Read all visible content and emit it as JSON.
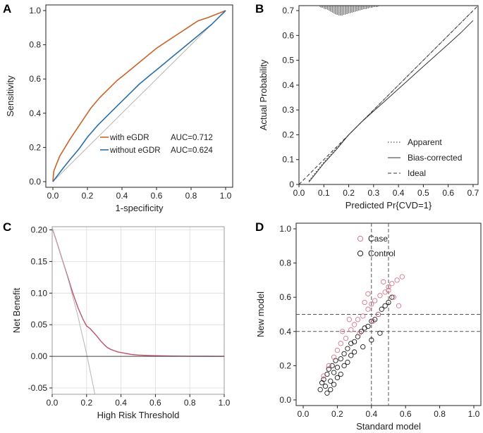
{
  "colors": {
    "with_egdr": "#c8642a",
    "without_egdr": "#2c6ea6",
    "dca_model": "#c0506a",
    "case_marker": "#d8758a",
    "control_marker": "#1a1a1a",
    "reference": "#b4b4b4",
    "axis": "#222222",
    "grid": "#dcdcdc"
  },
  "chart_data": [
    {
      "panel": "A",
      "type": "line",
      "xlabel": "1-specificity",
      "ylabel": "Sensitivity",
      "xlim": [
        0,
        1
      ],
      "ylim": [
        0,
        1
      ],
      "xticks": [
        "0.0",
        "0.2",
        "0.4",
        "0.6",
        "0.8",
        "1.0"
      ],
      "yticks": [
        "0.0",
        "0.2",
        "0.4",
        "0.6",
        "0.8",
        "1.0"
      ],
      "legend_position": "bottom-right",
      "series": [
        {
          "name": "with eGDR",
          "auc_label": "AUC=0.712",
          "x": [
            0,
            0.005,
            0.02,
            0.04,
            0.07,
            0.1,
            0.14,
            0.18,
            0.22,
            0.27,
            0.32,
            0.37,
            0.42,
            0.48,
            0.54,
            0.6,
            0.66,
            0.72,
            0.78,
            0.84,
            0.9,
            0.95,
            1.0
          ],
          "y": [
            0,
            0.06,
            0.1,
            0.15,
            0.2,
            0.25,
            0.31,
            0.37,
            0.43,
            0.49,
            0.54,
            0.59,
            0.63,
            0.68,
            0.73,
            0.78,
            0.82,
            0.86,
            0.9,
            0.94,
            0.96,
            0.98,
            1.0
          ]
        },
        {
          "name": "without eGDR",
          "auc_label": "AUC=0.624",
          "x": [
            0,
            0.03,
            0.06,
            0.1,
            0.15,
            0.2,
            0.26,
            0.32,
            0.38,
            0.44,
            0.5,
            0.56,
            0.62,
            0.68,
            0.74,
            0.8,
            0.86,
            0.92,
            0.97,
            1.0
          ],
          "y": [
            0,
            0.04,
            0.08,
            0.13,
            0.19,
            0.26,
            0.33,
            0.39,
            0.45,
            0.51,
            0.57,
            0.62,
            0.67,
            0.72,
            0.77,
            0.82,
            0.87,
            0.92,
            0.97,
            1.0
          ]
        }
      ]
    },
    {
      "panel": "B",
      "type": "line",
      "xlabel": "Predicted Pr{CVD=1}",
      "ylabel": "Actual Probability",
      "xlim": [
        0,
        0.72
      ],
      "ylim": [
        0,
        0.72
      ],
      "xticks": [
        "0.0",
        "0.1",
        "0.2",
        "0.3",
        "0.4",
        "0.5",
        "0.6",
        "0.7"
      ],
      "yticks": [
        "0",
        "0.1",
        "0.2",
        "0.3",
        "0.4",
        "0.5",
        "0.6",
        "0.7"
      ],
      "legend_position": "bottom-right",
      "series": [
        {
          "name": "Apparent",
          "style": "dotted",
          "x": [
            0.04,
            0.06,
            0.1,
            0.15,
            0.2,
            0.25,
            0.3,
            0.35,
            0.4,
            0.45,
            0.5,
            0.55,
            0.6,
            0.65,
            0.7
          ],
          "y": [
            0.015,
            0.04,
            0.09,
            0.145,
            0.2,
            0.25,
            0.3,
            0.35,
            0.4,
            0.45,
            0.5,
            0.55,
            0.6,
            0.65,
            0.7
          ]
        },
        {
          "name": "Bias-corrected",
          "style": "solid",
          "x": [
            0.04,
            0.06,
            0.1,
            0.15,
            0.2,
            0.25,
            0.3,
            0.35,
            0.4,
            0.45,
            0.5,
            0.55,
            0.6,
            0.65,
            0.7
          ],
          "y": [
            0.01,
            0.035,
            0.085,
            0.14,
            0.2,
            0.25,
            0.295,
            0.34,
            0.385,
            0.43,
            0.475,
            0.52,
            0.565,
            0.61,
            0.66
          ]
        },
        {
          "name": "Ideal",
          "style": "dashed",
          "x": [
            0,
            0.72
          ],
          "y": [
            0,
            0.72
          ]
        }
      ],
      "rug_x": [
        0.085,
        0.09,
        0.095,
        0.1,
        0.105,
        0.11,
        0.115,
        0.12,
        0.125,
        0.13,
        0.135,
        0.14,
        0.145,
        0.15,
        0.155,
        0.16,
        0.165,
        0.17,
        0.175,
        0.18,
        0.185,
        0.19,
        0.195,
        0.2,
        0.205,
        0.21,
        0.215,
        0.22,
        0.225,
        0.23,
        0.235,
        0.24,
        0.245,
        0.25,
        0.255,
        0.26,
        0.265,
        0.27,
        0.275,
        0.28,
        0.285,
        0.29,
        0.295,
        0.3,
        0.305,
        0.31,
        0.315,
        0.32
      ],
      "rug_h": [
        2,
        3,
        3,
        4,
        5,
        5,
        6,
        7,
        8,
        9,
        10,
        11,
        12,
        13,
        13,
        14,
        14,
        14,
        14,
        13,
        13,
        12,
        12,
        11,
        11,
        10,
        10,
        9,
        9,
        8,
        8,
        7,
        7,
        6,
        6,
        5,
        5,
        5,
        4,
        4,
        3,
        3,
        3,
        2,
        2,
        2,
        2,
        1
      ]
    },
    {
      "panel": "C",
      "type": "line",
      "xlabel": "High Risk Threshold",
      "ylabel": "Net Benefit",
      "xlim": [
        0,
        1
      ],
      "ylim": [
        -0.06,
        0.205
      ],
      "xticks": [
        "0.0",
        "0.2",
        "0.4",
        "0.6",
        "0.8",
        "1.0"
      ],
      "yticks": [
        "-0.05",
        "0.00",
        "0.05",
        "0.10",
        "0.15",
        "0.20"
      ],
      "series": [
        {
          "role": "model",
          "x": [
            0,
            0.03,
            0.06,
            0.09,
            0.12,
            0.15,
            0.18,
            0.2,
            0.22,
            0.24,
            0.26,
            0.28,
            0.3,
            0.32,
            0.34,
            0.36,
            0.38,
            0.4,
            0.42,
            0.44,
            0.46,
            0.5,
            0.55,
            0.6,
            0.7,
            0.8,
            0.9,
            1.0
          ],
          "y": [
            0.203,
            0.178,
            0.152,
            0.126,
            0.1,
            0.077,
            0.058,
            0.048,
            0.044,
            0.038,
            0.032,
            0.025,
            0.019,
            0.014,
            0.011,
            0.009,
            0.007,
            0.006,
            0.005,
            0.004,
            0.003,
            0.002,
            0.0015,
            0.001,
            0.0005,
            0.0002,
            0.0001,
            0
          ]
        },
        {
          "role": "treat-all",
          "x": [
            0,
            0.05,
            0.1,
            0.15,
            0.2,
            0.25
          ],
          "y": [
            0.203,
            0.161,
            0.115,
            0.063,
            0.004,
            -0.062
          ]
        },
        {
          "role": "treat-none",
          "x": [
            0,
            1
          ],
          "y": [
            0,
            0
          ]
        }
      ]
    },
    {
      "panel": "D",
      "type": "scatter",
      "xlabel": "Standard model",
      "ylabel": "New model",
      "xlim": [
        0,
        1
      ],
      "ylim": [
        0,
        1
      ],
      "xticks": [
        "0.0",
        "0.2",
        "0.4",
        "0.6",
        "0.8",
        "1.0"
      ],
      "yticks": [
        "0.0",
        "0.2",
        "0.4",
        "0.6",
        "0.8",
        "1.0"
      ],
      "reference_x": [
        0.4,
        0.5
      ],
      "reference_y": [
        0.4,
        0.5
      ],
      "legend_position": "top-right",
      "series": [
        {
          "name": "Case",
          "x": [
            0.12,
            0.15,
            0.18,
            0.2,
            0.22,
            0.25,
            0.28,
            0.3,
            0.32,
            0.35,
            0.38,
            0.4,
            0.42,
            0.45,
            0.48,
            0.5,
            0.52,
            0.55,
            0.58,
            0.47,
            0.5,
            0.53,
            0.56,
            0.33,
            0.36,
            0.27,
            0.44,
            0.41,
            0.23,
            0.38
          ],
          "y": [
            0.14,
            0.2,
            0.25,
            0.29,
            0.33,
            0.36,
            0.41,
            0.44,
            0.47,
            0.49,
            0.53,
            0.56,
            0.58,
            0.61,
            0.63,
            0.66,
            0.68,
            0.7,
            0.72,
            0.69,
            0.64,
            0.6,
            0.55,
            0.39,
            0.57,
            0.47,
            0.5,
            0.46,
            0.4,
            0.62
          ]
        },
        {
          "name": "Control",
          "x": [
            0.1,
            0.11,
            0.12,
            0.13,
            0.14,
            0.15,
            0.16,
            0.17,
            0.18,
            0.19,
            0.2,
            0.22,
            0.24,
            0.26,
            0.28,
            0.3,
            0.32,
            0.34,
            0.36,
            0.38,
            0.4,
            0.42,
            0.44,
            0.46,
            0.48,
            0.5,
            0.52,
            0.14,
            0.16,
            0.18,
            0.2,
            0.22,
            0.24,
            0.26,
            0.28,
            0.3,
            0.35,
            0.4,
            0.45
          ],
          "y": [
            0.06,
            0.1,
            0.12,
            0.08,
            0.15,
            0.18,
            0.11,
            0.2,
            0.16,
            0.23,
            0.19,
            0.24,
            0.27,
            0.3,
            0.33,
            0.34,
            0.37,
            0.4,
            0.42,
            0.43,
            0.46,
            0.47,
            0.5,
            0.53,
            0.55,
            0.57,
            0.6,
            0.04,
            0.06,
            0.09,
            0.13,
            0.15,
            0.2,
            0.22,
            0.26,
            0.28,
            0.31,
            0.35,
            0.39
          ]
        }
      ]
    }
  ]
}
